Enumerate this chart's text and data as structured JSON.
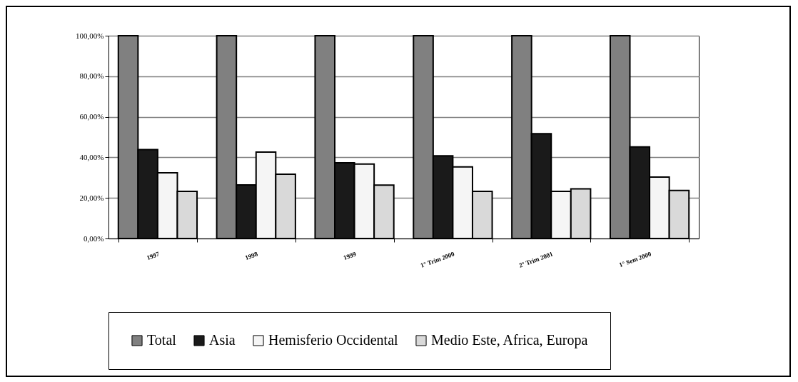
{
  "chart_data": {
    "type": "bar",
    "categories": [
      "1997",
      "1998",
      "1999",
      "1° Trim 2000",
      "2° Trim 2001",
      "1° Sem 2000"
    ],
    "series": [
      {
        "name": "Total",
        "color": "#808080",
        "values": [
          100,
          100,
          100,
          100,
          100,
          100
        ]
      },
      {
        "name": "Asia",
        "color": "#1a1a1a",
        "values": [
          43.8,
          26.4,
          37.3,
          40.8,
          51.7,
          45.2
        ]
      },
      {
        "name": "Hemisferio Occidental",
        "color": "#f5f5f5",
        "values": [
          32.4,
          42.6,
          36.7,
          35.3,
          23.2,
          30.3
        ]
      },
      {
        "name": "Medio Este, Africa, Europa",
        "color": "#d9d9d9",
        "values": [
          23.2,
          31.7,
          26.3,
          23.2,
          24.5,
          23.7
        ]
      }
    ],
    "ylim": [
      0,
      100
    ],
    "yticks": [
      {
        "value": 0,
        "label": "0,00%"
      },
      {
        "value": 20,
        "label": "20,00%"
      },
      {
        "value": 40,
        "label": "40,00%"
      },
      {
        "value": 60,
        "label": "60,00%"
      },
      {
        "value": 80,
        "label": "80,00%"
      },
      {
        "value": 100,
        "label": "100,00%"
      }
    ],
    "grid": "y",
    "legend": "bottom"
  }
}
